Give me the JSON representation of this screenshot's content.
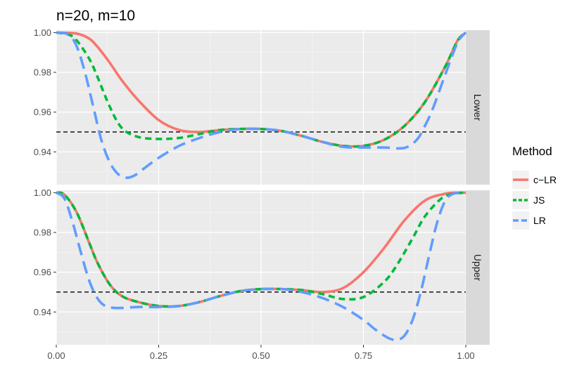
{
  "chart_data": {
    "type": "line",
    "title": "n=20, m=10",
    "xlabel": "",
    "ylabel": "",
    "xlim": [
      0,
      1
    ],
    "ylim": [
      0.9235,
      1.0012
    ],
    "x_ticks": [
      0,
      0.25,
      0.5,
      0.75,
      1
    ],
    "x_tick_labels": [
      "0.00",
      "0.25",
      "0.50",
      "0.75",
      "1.00"
    ],
    "y_ticks": [
      0.94,
      0.96,
      0.98,
      1.0
    ],
    "y_tick_labels": [
      "0.94",
      "0.96",
      "0.98",
      "1.00"
    ],
    "reference_line": {
      "y": 0.95,
      "style": "dashed",
      "color": "#000000"
    },
    "legend": {
      "title": "Method",
      "placement": "right",
      "entries": [
        "c−LR",
        "JS",
        "LR"
      ]
    },
    "grid": true,
    "panels": [
      {
        "label": "Lower",
        "series": [
          {
            "name": "c−LR",
            "color": "#F8766D",
            "dash": "solid",
            "x": [
              0,
              0.05,
              0.08,
              0.1,
              0.13,
              0.16,
              0.2,
              0.25,
              0.3,
              0.35,
              0.4,
              0.45,
              0.5,
              0.55,
              0.6,
              0.65,
              0.7,
              0.75,
              0.8,
              0.85,
              0.9,
              0.95,
              0.98,
              1
            ],
            "values": [
              1.0,
              0.9995,
              0.997,
              0.993,
              0.985,
              0.976,
              0.966,
              0.956,
              0.951,
              0.95,
              0.951,
              0.9515,
              0.9515,
              0.9505,
              0.948,
              0.945,
              0.943,
              0.943,
              0.946,
              0.953,
              0.965,
              0.983,
              0.996,
              1.0
            ]
          },
          {
            "name": "JS",
            "color": "#00BA38",
            "dash": "dashed",
            "x": [
              0,
              0.03,
              0.05,
              0.08,
              0.1,
              0.13,
              0.16,
              0.2,
              0.25,
              0.3,
              0.35,
              0.4,
              0.45,
              0.5,
              0.55,
              0.6,
              0.65,
              0.7,
              0.75,
              0.8,
              0.85,
              0.9,
              0.95,
              0.98,
              1
            ],
            "values": [
              1.0,
              0.999,
              0.996,
              0.987,
              0.978,
              0.963,
              0.952,
              0.9475,
              0.9465,
              0.947,
              0.949,
              0.951,
              0.9515,
              0.9515,
              0.9505,
              0.948,
              0.945,
              0.943,
              0.943,
              0.946,
              0.953,
              0.965,
              0.983,
              0.996,
              1.0
            ]
          },
          {
            "name": "LR",
            "color": "#619CFF",
            "dash": "longdash",
            "x": [
              0,
              0.03,
              0.05,
              0.07,
              0.09,
              0.11,
              0.13,
              0.15,
              0.17,
              0.19,
              0.21,
              0.25,
              0.3,
              0.35,
              0.4,
              0.45,
              0.5,
              0.55,
              0.6,
              0.65,
              0.7,
              0.75,
              0.8,
              0.85,
              0.88,
              0.9,
              0.92,
              0.95,
              0.98,
              1
            ],
            "values": [
              1.0,
              0.999,
              0.993,
              0.98,
              0.963,
              0.946,
              0.935,
              0.929,
              0.927,
              0.928,
              0.931,
              0.937,
              0.943,
              0.947,
              0.95,
              0.9515,
              0.9515,
              0.9505,
              0.948,
              0.945,
              0.9425,
              0.9422,
              0.9422,
              0.942,
              0.946,
              0.953,
              0.962,
              0.979,
              0.995,
              1.0
            ]
          }
        ]
      },
      {
        "label": "Upper",
        "series": [
          {
            "name": "c−LR",
            "color": "#F8766D",
            "dash": "solid",
            "x": [
              0,
              0.02,
              0.05,
              0.08,
              0.1,
              0.13,
              0.16,
              0.2,
              0.25,
              0.3,
              0.35,
              0.4,
              0.45,
              0.5,
              0.55,
              0.6,
              0.65,
              0.7,
              0.75,
              0.8,
              0.85,
              0.9,
              0.95,
              0.98,
              1
            ],
            "values": [
              1.0,
              0.999,
              0.99,
              0.975,
              0.965,
              0.954,
              0.948,
              0.945,
              0.943,
              0.943,
              0.945,
              0.948,
              0.9505,
              0.9515,
              0.9515,
              0.951,
              0.95,
              0.952,
              0.96,
              0.972,
              0.986,
              0.996,
              0.9995,
              1.0,
              1.0
            ]
          },
          {
            "name": "JS",
            "color": "#00BA38",
            "dash": "dashed",
            "x": [
              0,
              0.02,
              0.05,
              0.08,
              0.1,
              0.13,
              0.16,
              0.2,
              0.25,
              0.3,
              0.35,
              0.4,
              0.45,
              0.5,
              0.55,
              0.6,
              0.65,
              0.7,
              0.75,
              0.8,
              0.83,
              0.87,
              0.9,
              0.94,
              0.97,
              1
            ],
            "values": [
              1.0,
              0.999,
              0.99,
              0.975,
              0.965,
              0.954,
              0.948,
              0.945,
              0.943,
              0.943,
              0.945,
              0.948,
              0.9505,
              0.9515,
              0.9515,
              0.951,
              0.949,
              0.9465,
              0.9475,
              0.955,
              0.963,
              0.977,
              0.988,
              0.997,
              0.9995,
              1.0
            ]
          },
          {
            "name": "LR",
            "color": "#619CFF",
            "dash": "longdash",
            "x": [
              0,
              0.02,
              0.04,
              0.06,
              0.08,
              0.1,
              0.12,
              0.15,
              0.2,
              0.25,
              0.3,
              0.35,
              0.4,
              0.45,
              0.5,
              0.55,
              0.6,
              0.65,
              0.7,
              0.75,
              0.78,
              0.81,
              0.83,
              0.85,
              0.87,
              0.89,
              0.91,
              0.93,
              0.95,
              0.97,
              1
            ],
            "values": [
              1.0,
              0.997,
              0.985,
              0.97,
              0.956,
              0.947,
              0.943,
              0.942,
              0.9425,
              0.9425,
              0.943,
              0.945,
              0.948,
              0.9505,
              0.9515,
              0.9515,
              0.95,
              0.947,
              0.9425,
              0.936,
              0.931,
              0.927,
              0.926,
              0.928,
              0.936,
              0.95,
              0.968,
              0.985,
              0.996,
              0.9995,
              1.0
            ]
          }
        ]
      }
    ]
  }
}
